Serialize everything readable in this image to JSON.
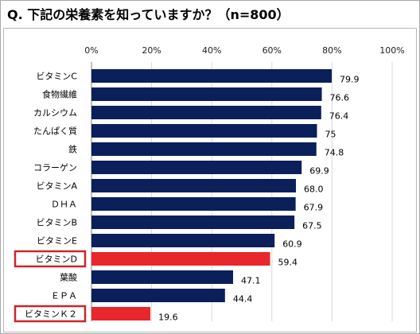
{
  "title": "Q.  下記の栄養素を知っていますか？（n=800）",
  "colors": {
    "bar": "#0b1f5b",
    "highlight": "#e8262b",
    "box": "#c8262b",
    "grid": "#d8d8d8"
  },
  "chart_data": {
    "type": "bar",
    "orientation": "horizontal",
    "title": "Q.  下記の栄養素を知っていますか？（n=800）",
    "xlim": [
      0,
      100
    ],
    "x_ticks": [
      "0%",
      "20%",
      "40%",
      "60%",
      "80%",
      "100%"
    ],
    "grid": true,
    "categories": [
      "ビタミンC",
      "食物繊維",
      "カルシウム",
      "たんぱく質",
      "鉄",
      "コラーゲン",
      "ビタミンA",
      "ＤＨＡ",
      "ビタミンB",
      "ビタミンE",
      "ビタミンD",
      "葉酸",
      "ＥＰＡ",
      "ビタミンＫ２"
    ],
    "values": [
      79.9,
      76.6,
      76.4,
      75,
      74.8,
      69.9,
      68.0,
      67.9,
      67.5,
      60.9,
      59.4,
      47.1,
      44.4,
      19.6
    ],
    "value_labels": [
      "79.9",
      "76.6",
      "76.4",
      "75",
      "74.8",
      "69.9",
      "68.0",
      "67.9",
      "67.5",
      "60.9",
      "59.4",
      "47.1",
      "44.4",
      "19.6"
    ],
    "highlighted": [
      "ビタミンD",
      "ビタミンＫ２"
    ]
  }
}
